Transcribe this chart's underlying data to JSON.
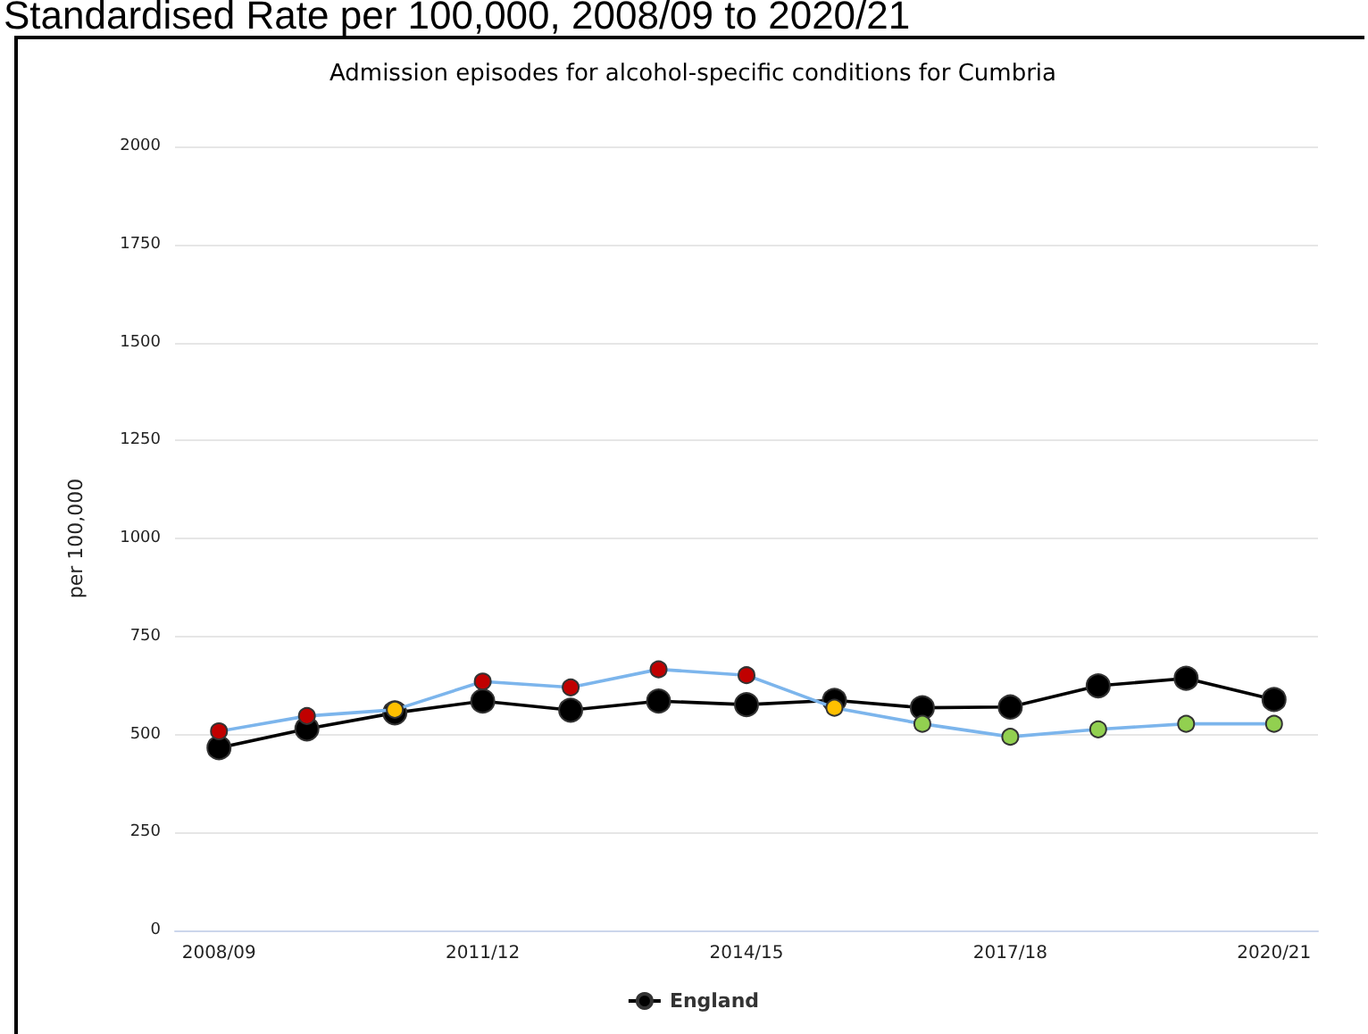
{
  "chart_data": {
    "type": "line",
    "title": "Standardised Rate per 100,000, 2008/09 to 2020/21",
    "subtitle": "Admission episodes for alcohol-specific conditions for Cumbria",
    "ylabel": "per 100,000",
    "categories": [
      "2008/09",
      null,
      null,
      "2011/12",
      null,
      null,
      "2014/15",
      null,
      null,
      "2017/18",
      null,
      null,
      "2020/21"
    ],
    "series": [
      {
        "color": "#7cb5ec",
        "colors": [
          "#c00000",
          "#c00000",
          "#ffc000",
          "#c00000",
          "#c00000",
          "#c00000",
          "#c00000",
          "#ffc000",
          "#92d050",
          "#92d050",
          "#92d050",
          "#92d050",
          "#92d050"
        ],
        "values": [
          508,
          547,
          563,
          635,
          620,
          666,
          651,
          568,
          527,
          494,
          513,
          527,
          527
        ]
      },
      {
        "name": "England",
        "color": "#000000",
        "values": [
          466,
          514,
          555,
          585,
          562,
          585,
          576,
          587,
          568,
          570,
          624,
          643,
          589
        ]
      }
    ],
    "ylim": [
      0,
      2000
    ],
    "yticks": [
      0,
      250,
      500,
      750,
      1000,
      1250,
      1500,
      1750,
      2000
    ],
    "grid": "y",
    "legend": "bottom",
    "marker": "circle",
    "line_style": "solid"
  }
}
